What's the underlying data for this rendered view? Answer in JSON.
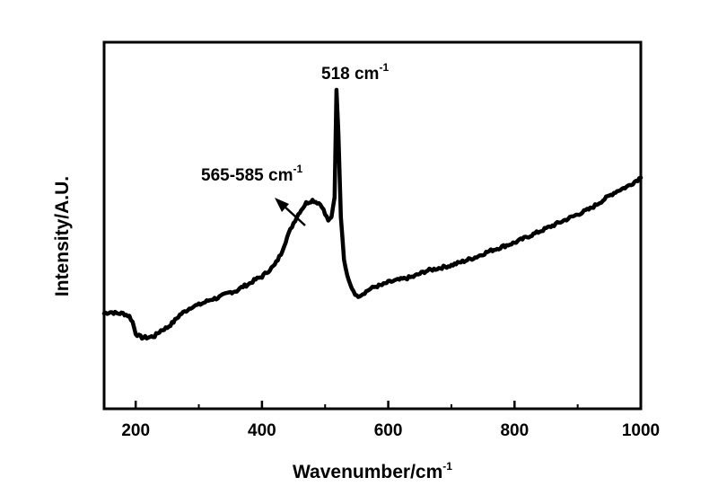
{
  "chart_data": {
    "type": "line",
    "title": "",
    "xlabel": "Wavenumber/cm",
    "xlabel_sup": "-1",
    "ylabel": "Intensity/A.U.",
    "xlim": [
      150,
      1000
    ],
    "ylim": [
      0,
      100
    ],
    "x_ticks": [
      200,
      400,
      600,
      800,
      1000
    ],
    "x_tick_labels": [
      "200",
      "400",
      "600",
      "800",
      "1000"
    ],
    "y_ticks_visible": false,
    "grid": false,
    "legend": "none",
    "line_color": "#000000",
    "series": [
      {
        "x": [
          150,
          160,
          170,
          180,
          190,
          195,
          200,
          205,
          210,
          220,
          230,
          240,
          250,
          260,
          270,
          280,
          290,
          300,
          310,
          320,
          330,
          340,
          350,
          360,
          370,
          380,
          390,
          400,
          410,
          420,
          430,
          440,
          450,
          460,
          470,
          480,
          490,
          495,
          500,
          505,
          510,
          515,
          518,
          521,
          525,
          530,
          535,
          540,
          545,
          550,
          560,
          570,
          580,
          590,
          600,
          620,
          640,
          660,
          680,
          700,
          720,
          740,
          760,
          780,
          800,
          820,
          840,
          860,
          880,
          900,
          920,
          940,
          960,
          980,
          1000
        ],
        "values": [
          21,
          21.5,
          21,
          21,
          20,
          18,
          14,
          13,
          12.5,
          12.5,
          13,
          15,
          16,
          18,
          20.5,
          22,
          23.5,
          24,
          25,
          26,
          26.5,
          27.5,
          28.5,
          29,
          30.5,
          31.5,
          33,
          34,
          36,
          38,
          42,
          48,
          53,
          57,
          60,
          61,
          60,
          59,
          56,
          54,
          55,
          62,
          100,
          85,
          55,
          40,
          34,
          31,
          29,
          27,
          28,
          29.5,
          30.5,
          31,
          32,
          33,
          34,
          36,
          37,
          38,
          39.5,
          41,
          43,
          44.5,
          46,
          48,
          50,
          52,
          54,
          56,
          58,
          61,
          64,
          66,
          69
        ]
      }
    ],
    "annotations": [
      {
        "label": "518 cm",
        "sup": "-1",
        "x": 518
      },
      {
        "label": "565-585 cm",
        "sup": "-1",
        "arrow": true
      }
    ]
  }
}
